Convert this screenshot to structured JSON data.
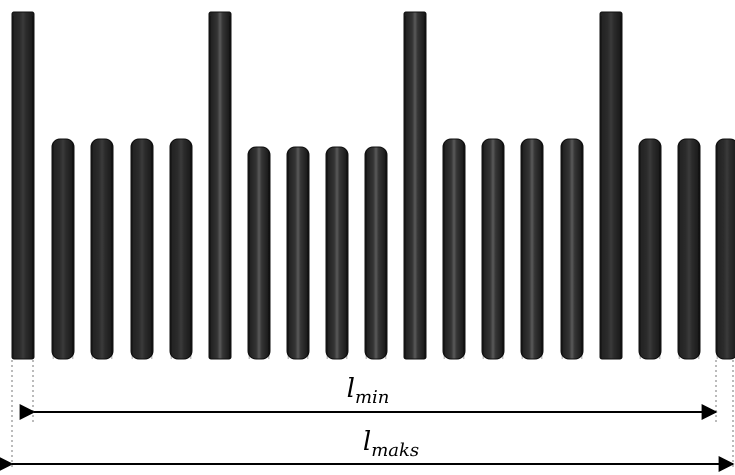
{
  "labels": {
    "l_min": {
      "base": "l",
      "subscript": "min"
    },
    "l_maks": {
      "base": "l",
      "subscript": "maks"
    }
  },
  "colors": {
    "background": "#ffffff",
    "bar_dark": "#1f1f1f",
    "bar_edge": "#111111",
    "bar_highlight": "#555555",
    "arrow": "#000000",
    "guide": "#777777"
  },
  "scale": {
    "bar_count": 19,
    "long_bar_period": 5,
    "tall_bar_indices": [
      0,
      5,
      10,
      15
    ]
  }
}
